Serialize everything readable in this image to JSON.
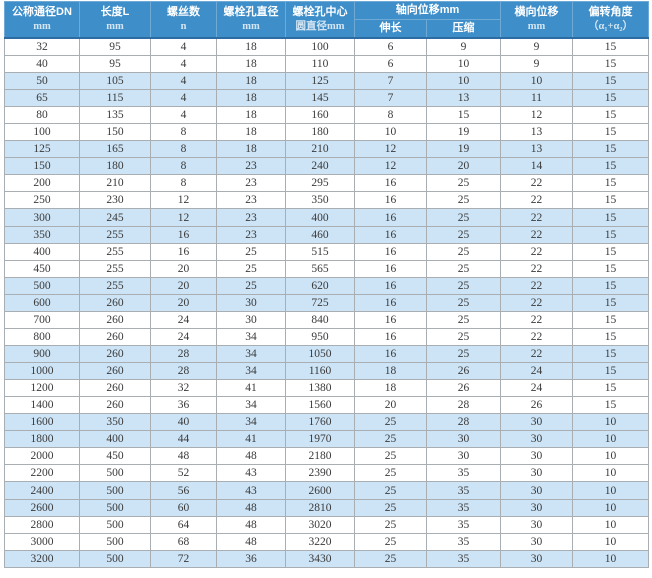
{
  "table": {
    "header": {
      "dn": {
        "line1": "公称通径DN",
        "line2": "mm"
      },
      "length": {
        "line1": "长度L",
        "line2": "mm"
      },
      "screws": {
        "line1": "螺丝数",
        "line2": "n"
      },
      "bolt_hole_dia": {
        "line1": "螺栓孔直径",
        "line2": "mm"
      },
      "bolt_circle": {
        "line1": "螺栓孔中心",
        "line2": "圆直径mm"
      },
      "axial": {
        "title": "轴向位移mm",
        "extend": "伸长",
        "compress": "压缩"
      },
      "lateral": {
        "line1": "横向位移",
        "line2": "mm"
      },
      "angle": {
        "line1": "偏转角度",
        "line2": "（α₁+α₂）"
      }
    }
  },
  "colors": {
    "header_bg": "#3E8EC9",
    "header_text": "#FFFFFF",
    "stripe_row_bg": "#CDE4F6",
    "grid_border": "#A9AEB2",
    "header_bottom_edge": "#2D6BA3"
  },
  "chart_data": {
    "type": "table",
    "columns": [
      "公称通径DN mm",
      "长度L mm",
      "螺丝数 n",
      "螺栓孔直径 mm",
      "螺栓孔中心圆直径mm",
      "轴向位移mm 伸长",
      "轴向位移mm 压缩",
      "横向位移 mm",
      "偏转角度（α₁+α₂）"
    ],
    "rows": [
      [
        32,
        95,
        4,
        18,
        100,
        6,
        9,
        9,
        15
      ],
      [
        40,
        95,
        4,
        18,
        110,
        6,
        10,
        9,
        15
      ],
      [
        50,
        105,
        4,
        18,
        125,
        7,
        10,
        10,
        15
      ],
      [
        65,
        115,
        4,
        18,
        145,
        7,
        13,
        11,
        15
      ],
      [
        80,
        135,
        4,
        18,
        160,
        8,
        15,
        12,
        15
      ],
      [
        100,
        150,
        8,
        18,
        180,
        10,
        19,
        13,
        15
      ],
      [
        125,
        165,
        8,
        18,
        210,
        12,
        19,
        13,
        15
      ],
      [
        150,
        180,
        8,
        23,
        240,
        12,
        20,
        14,
        15
      ],
      [
        200,
        210,
        8,
        23,
        295,
        16,
        25,
        22,
        15
      ],
      [
        250,
        230,
        12,
        23,
        350,
        16,
        25,
        22,
        15
      ],
      [
        300,
        245,
        12,
        23,
        400,
        16,
        25,
        22,
        15
      ],
      [
        350,
        255,
        16,
        23,
        460,
        16,
        25,
        22,
        15
      ],
      [
        400,
        255,
        16,
        25,
        515,
        16,
        25,
        22,
        15
      ],
      [
        450,
        255,
        20,
        25,
        565,
        16,
        25,
        22,
        15
      ],
      [
        500,
        255,
        20,
        25,
        620,
        16,
        25,
        22,
        15
      ],
      [
        600,
        260,
        20,
        30,
        725,
        16,
        25,
        22,
        15
      ],
      [
        700,
        260,
        24,
        30,
        840,
        16,
        25,
        22,
        15
      ],
      [
        800,
        260,
        24,
        34,
        950,
        16,
        25,
        22,
        15
      ],
      [
        900,
        260,
        28,
        34,
        1050,
        16,
        25,
        22,
        15
      ],
      [
        1000,
        260,
        28,
        34,
        1160,
        18,
        26,
        24,
        15
      ],
      [
        1200,
        260,
        32,
        41,
        1380,
        18,
        26,
        24,
        15
      ],
      [
        1400,
        260,
        36,
        34,
        1560,
        20,
        28,
        26,
        15
      ],
      [
        1600,
        350,
        40,
        34,
        1760,
        25,
        28,
        30,
        10
      ],
      [
        1800,
        400,
        44,
        41,
        1970,
        25,
        30,
        30,
        10
      ],
      [
        2000,
        450,
        48,
        48,
        2180,
        25,
        30,
        30,
        10
      ],
      [
        2200,
        500,
        52,
        43,
        2390,
        25,
        35,
        30,
        10
      ],
      [
        2400,
        500,
        56,
        43,
        2600,
        25,
        35,
        30,
        10
      ],
      [
        2600,
        500,
        60,
        48,
        2810,
        25,
        35,
        30,
        10
      ],
      [
        2800,
        500,
        64,
        48,
        3020,
        25,
        35,
        30,
        10
      ],
      [
        3000,
        500,
        68,
        48,
        3220,
        25,
        35,
        30,
        10
      ],
      [
        3200,
        500,
        72,
        36,
        3430,
        25,
        35,
        30,
        10
      ]
    ]
  }
}
